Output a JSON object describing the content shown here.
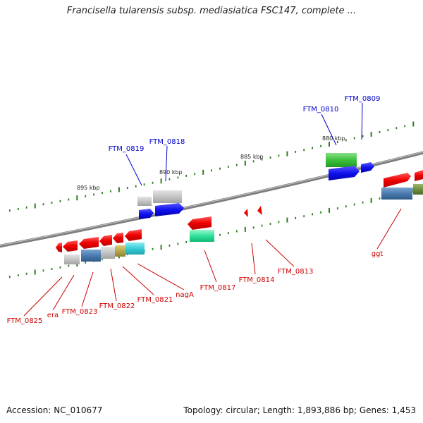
{
  "title": "Francisella tularensis subsp. mediasiatica FSC147, complete ...",
  "footer": {
    "accession": "Accession: NC_010677",
    "summary": "Topology: circular; Length: 1,893,886 bp; Genes: 1,453"
  },
  "scale_labels": [
    "895 kbp",
    "890 kbp",
    "885 kbp",
    "880 kbp"
  ],
  "genes_top": [
    "FTM_0819",
    "FTM_0818",
    "FTM_0810",
    "FTM_0809"
  ],
  "genes_bottom": [
    "FTM_0825",
    "era",
    "FTM_0823",
    "FTM_0822",
    "FTM_0821",
    "nagA",
    "FTM_0817",
    "FTM_0814",
    "FTM_0813",
    "ggt"
  ],
  "colors": {
    "label_top": "#0000cc",
    "label_bottom": "#cc0000",
    "tick": "#2e7d1e",
    "backbone": "#888888"
  }
}
